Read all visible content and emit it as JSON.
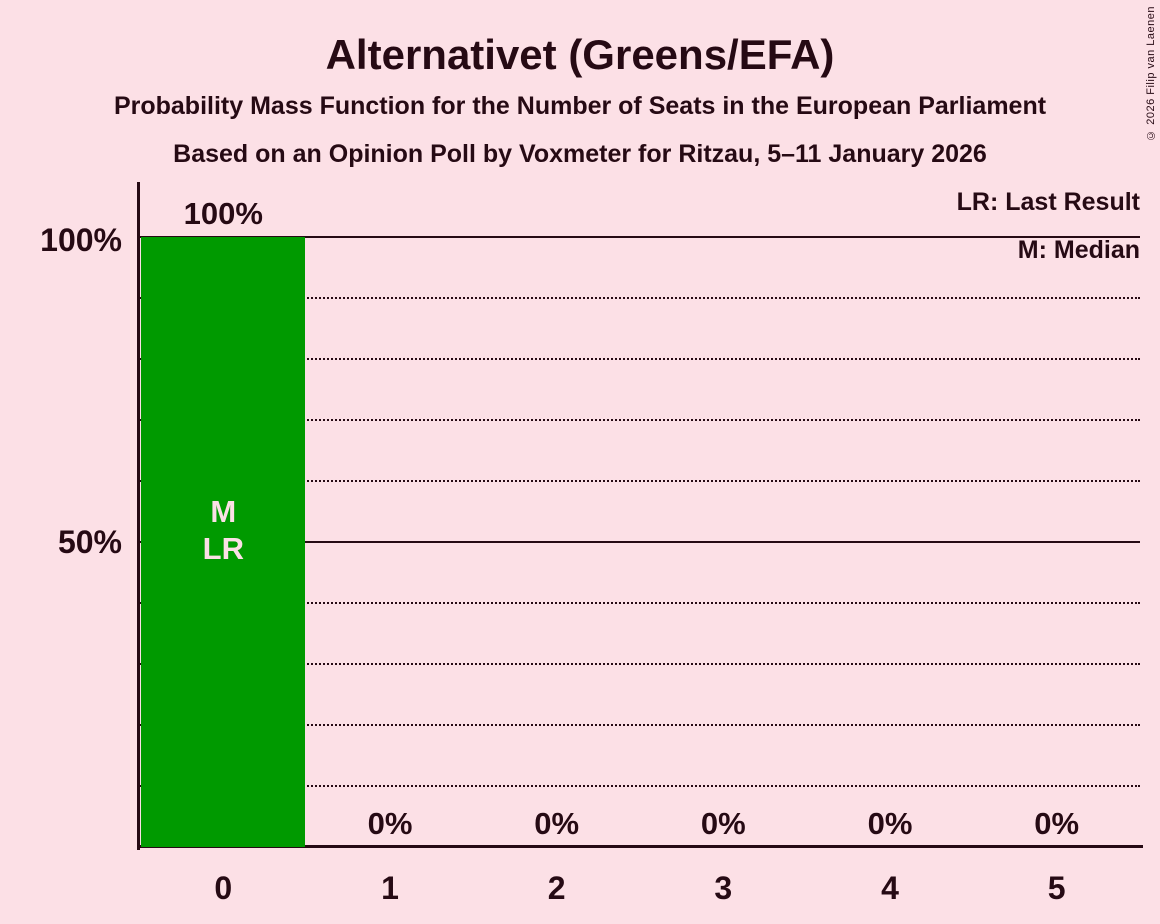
{
  "title": "Alternativet (Greens/EFA)",
  "subtitle1": "Probability Mass Function for the Number of Seats in the European Parliament",
  "subtitle2": "Based on an Opinion Poll by Voxmeter for Ritzau, 5–11 January 2026",
  "copyright": "© 2026 Filip van Laenen",
  "legend": {
    "lr": "LR: Last Result",
    "m": "M: Median"
  },
  "colors": {
    "background": "#FCE0E6",
    "text": "#260A14",
    "bar": "#009A00",
    "bar_label_text": "#FCE0E6"
  },
  "y_axis": {
    "labels": [
      {
        "text": "100%",
        "value": 100
      },
      {
        "text": "50%",
        "value": 50
      }
    ]
  },
  "chart_data": {
    "type": "bar",
    "title": "Alternativet (Greens/EFA)",
    "categories": [
      "0",
      "1",
      "2",
      "3",
      "4",
      "5"
    ],
    "values": [
      100,
      0,
      0,
      0,
      0,
      0
    ],
    "value_labels": [
      "100%",
      "0%",
      "0%",
      "0%",
      "0%",
      "0%"
    ],
    "ylim": [
      0,
      100
    ],
    "gridlines": {
      "solid": [
        100,
        50
      ],
      "dotted": [
        90,
        80,
        70,
        60,
        40,
        30,
        20,
        10
      ]
    },
    "bar_annotations": [
      {
        "category_index": 0,
        "lines": [
          "M",
          "LR"
        ]
      }
    ],
    "legend_position": "top-right",
    "grid": true
  }
}
